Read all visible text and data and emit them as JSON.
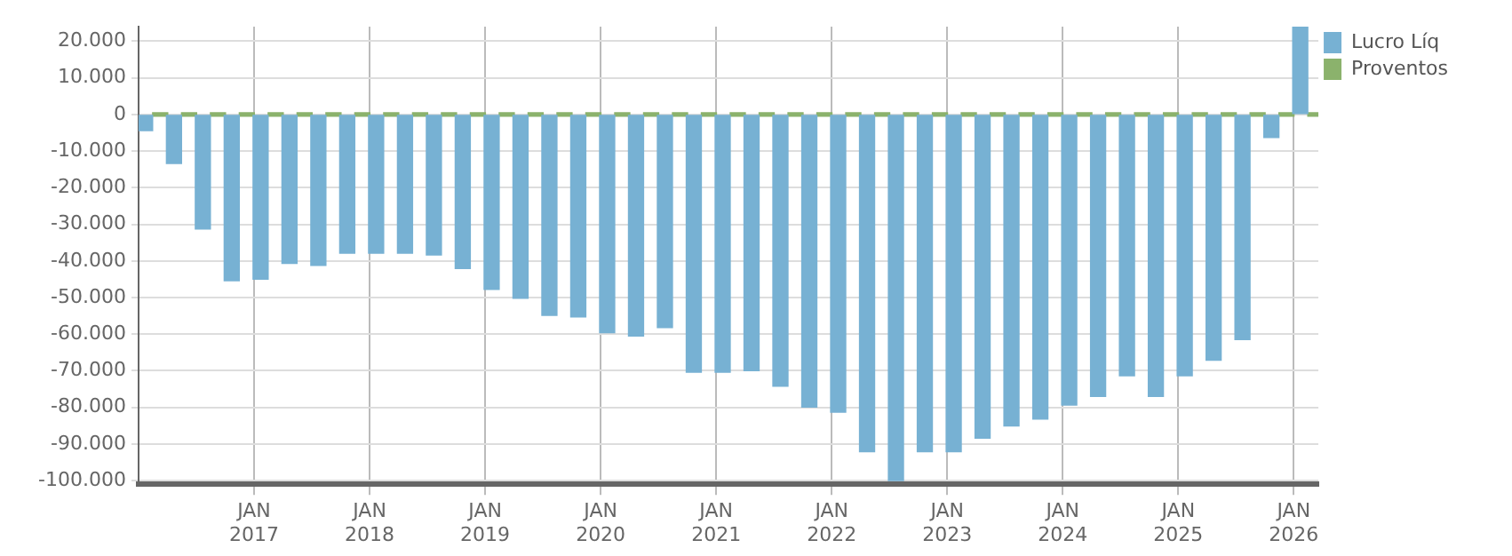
{
  "chart_data": {
    "type": "bar",
    "x": [
      "2016-02-15",
      "2016-05-15",
      "2016-08-15",
      "2016-11-15",
      "2017-02-15",
      "2017-05-15",
      "2017-08-15",
      "2017-11-15",
      "2018-02-15",
      "2018-05-15",
      "2018-08-15",
      "2018-11-15",
      "2019-02-15",
      "2019-05-15",
      "2019-08-15",
      "2019-11-15",
      "2020-02-15",
      "2020-05-15",
      "2020-08-15",
      "2020-11-15",
      "2021-02-15",
      "2021-05-15",
      "2021-08-15",
      "2021-11-15",
      "2022-02-15",
      "2022-05-15",
      "2022-08-15",
      "2022-11-15",
      "2023-02-15",
      "2023-05-15",
      "2023-08-15",
      "2023-11-15",
      "2024-02-15",
      "2024-05-15",
      "2024-08-15",
      "2024-11-15",
      "2025-02-15",
      "2025-05-15",
      "2025-08-15",
      "2025-11-15",
      "2026-02-15"
    ],
    "series": [
      {
        "name": "Lucro Líq",
        "color": "#77b1d3",
        "values": [
          -4400,
          -13400,
          -31300,
          -45400,
          -45000,
          -40700,
          -41200,
          -37900,
          -37900,
          -37900,
          -38400,
          -42100,
          -47800,
          -50200,
          -54900,
          -55300,
          -59600,
          -60500,
          -58200,
          -70400,
          -70400,
          -70000,
          -74200,
          -79900,
          -81300,
          -92100,
          -100000,
          -92100,
          -92100,
          -88400,
          -85100,
          -83200,
          -79400,
          -77000,
          -71400,
          -77000,
          -71400,
          -67100,
          -61500,
          -6300,
          24000
        ]
      },
      {
        "name": "Proventos",
        "color": "#8bb26c",
        "values": [
          0,
          0,
          0,
          0,
          0,
          0,
          0,
          0,
          0,
          0,
          0,
          0,
          0,
          0,
          0,
          0,
          0,
          0,
          0,
          0,
          0,
          0,
          0,
          0,
          0,
          0,
          0,
          0,
          0,
          0,
          0,
          0,
          0,
          0,
          0,
          0,
          0,
          0,
          0,
          0,
          0
        ]
      }
    ],
    "xlim": [
      "2016-01",
      "2026-03-18"
    ],
    "xticks": [
      {
        "value": "2017-01",
        "label": "JAN 2017"
      },
      {
        "value": "2018-01",
        "label": "JAN 2018"
      },
      {
        "value": "2019-01",
        "label": "JAN 2019"
      },
      {
        "value": "2020-01",
        "label": "JAN 2020"
      },
      {
        "value": "2021-01",
        "label": "JAN 2021"
      },
      {
        "value": "2022-01",
        "label": "JAN 2022"
      },
      {
        "value": "2023-01",
        "label": "JAN 2023"
      },
      {
        "value": "2024-01",
        "label": "JAN 2024"
      },
      {
        "value": "2025-01",
        "label": "JAN 2025"
      },
      {
        "value": "2026-01",
        "label": "JAN 2026"
      }
    ],
    "ylim": [
      -101000,
      24000
    ],
    "yticks": [
      {
        "value": -100000,
        "label": "-100.000"
      },
      {
        "value": -90000,
        "label": "-90.000"
      },
      {
        "value": -80000,
        "label": "-80.000"
      },
      {
        "value": -70000,
        "label": "-70.000"
      },
      {
        "value": -60000,
        "label": "-60.000"
      },
      {
        "value": -50000,
        "label": "-50.000"
      },
      {
        "value": -40000,
        "label": "-40.000"
      },
      {
        "value": -30000,
        "label": "-30.000"
      },
      {
        "value": -20000,
        "label": "-20.000"
      },
      {
        "value": -10000,
        "label": "-10.000"
      },
      {
        "value": 0,
        "label": "0"
      },
      {
        "value": 10000,
        "label": "10.000"
      },
      {
        "value": 20000,
        "label": "20.000"
      }
    ],
    "grid": true,
    "legend": "top right"
  }
}
